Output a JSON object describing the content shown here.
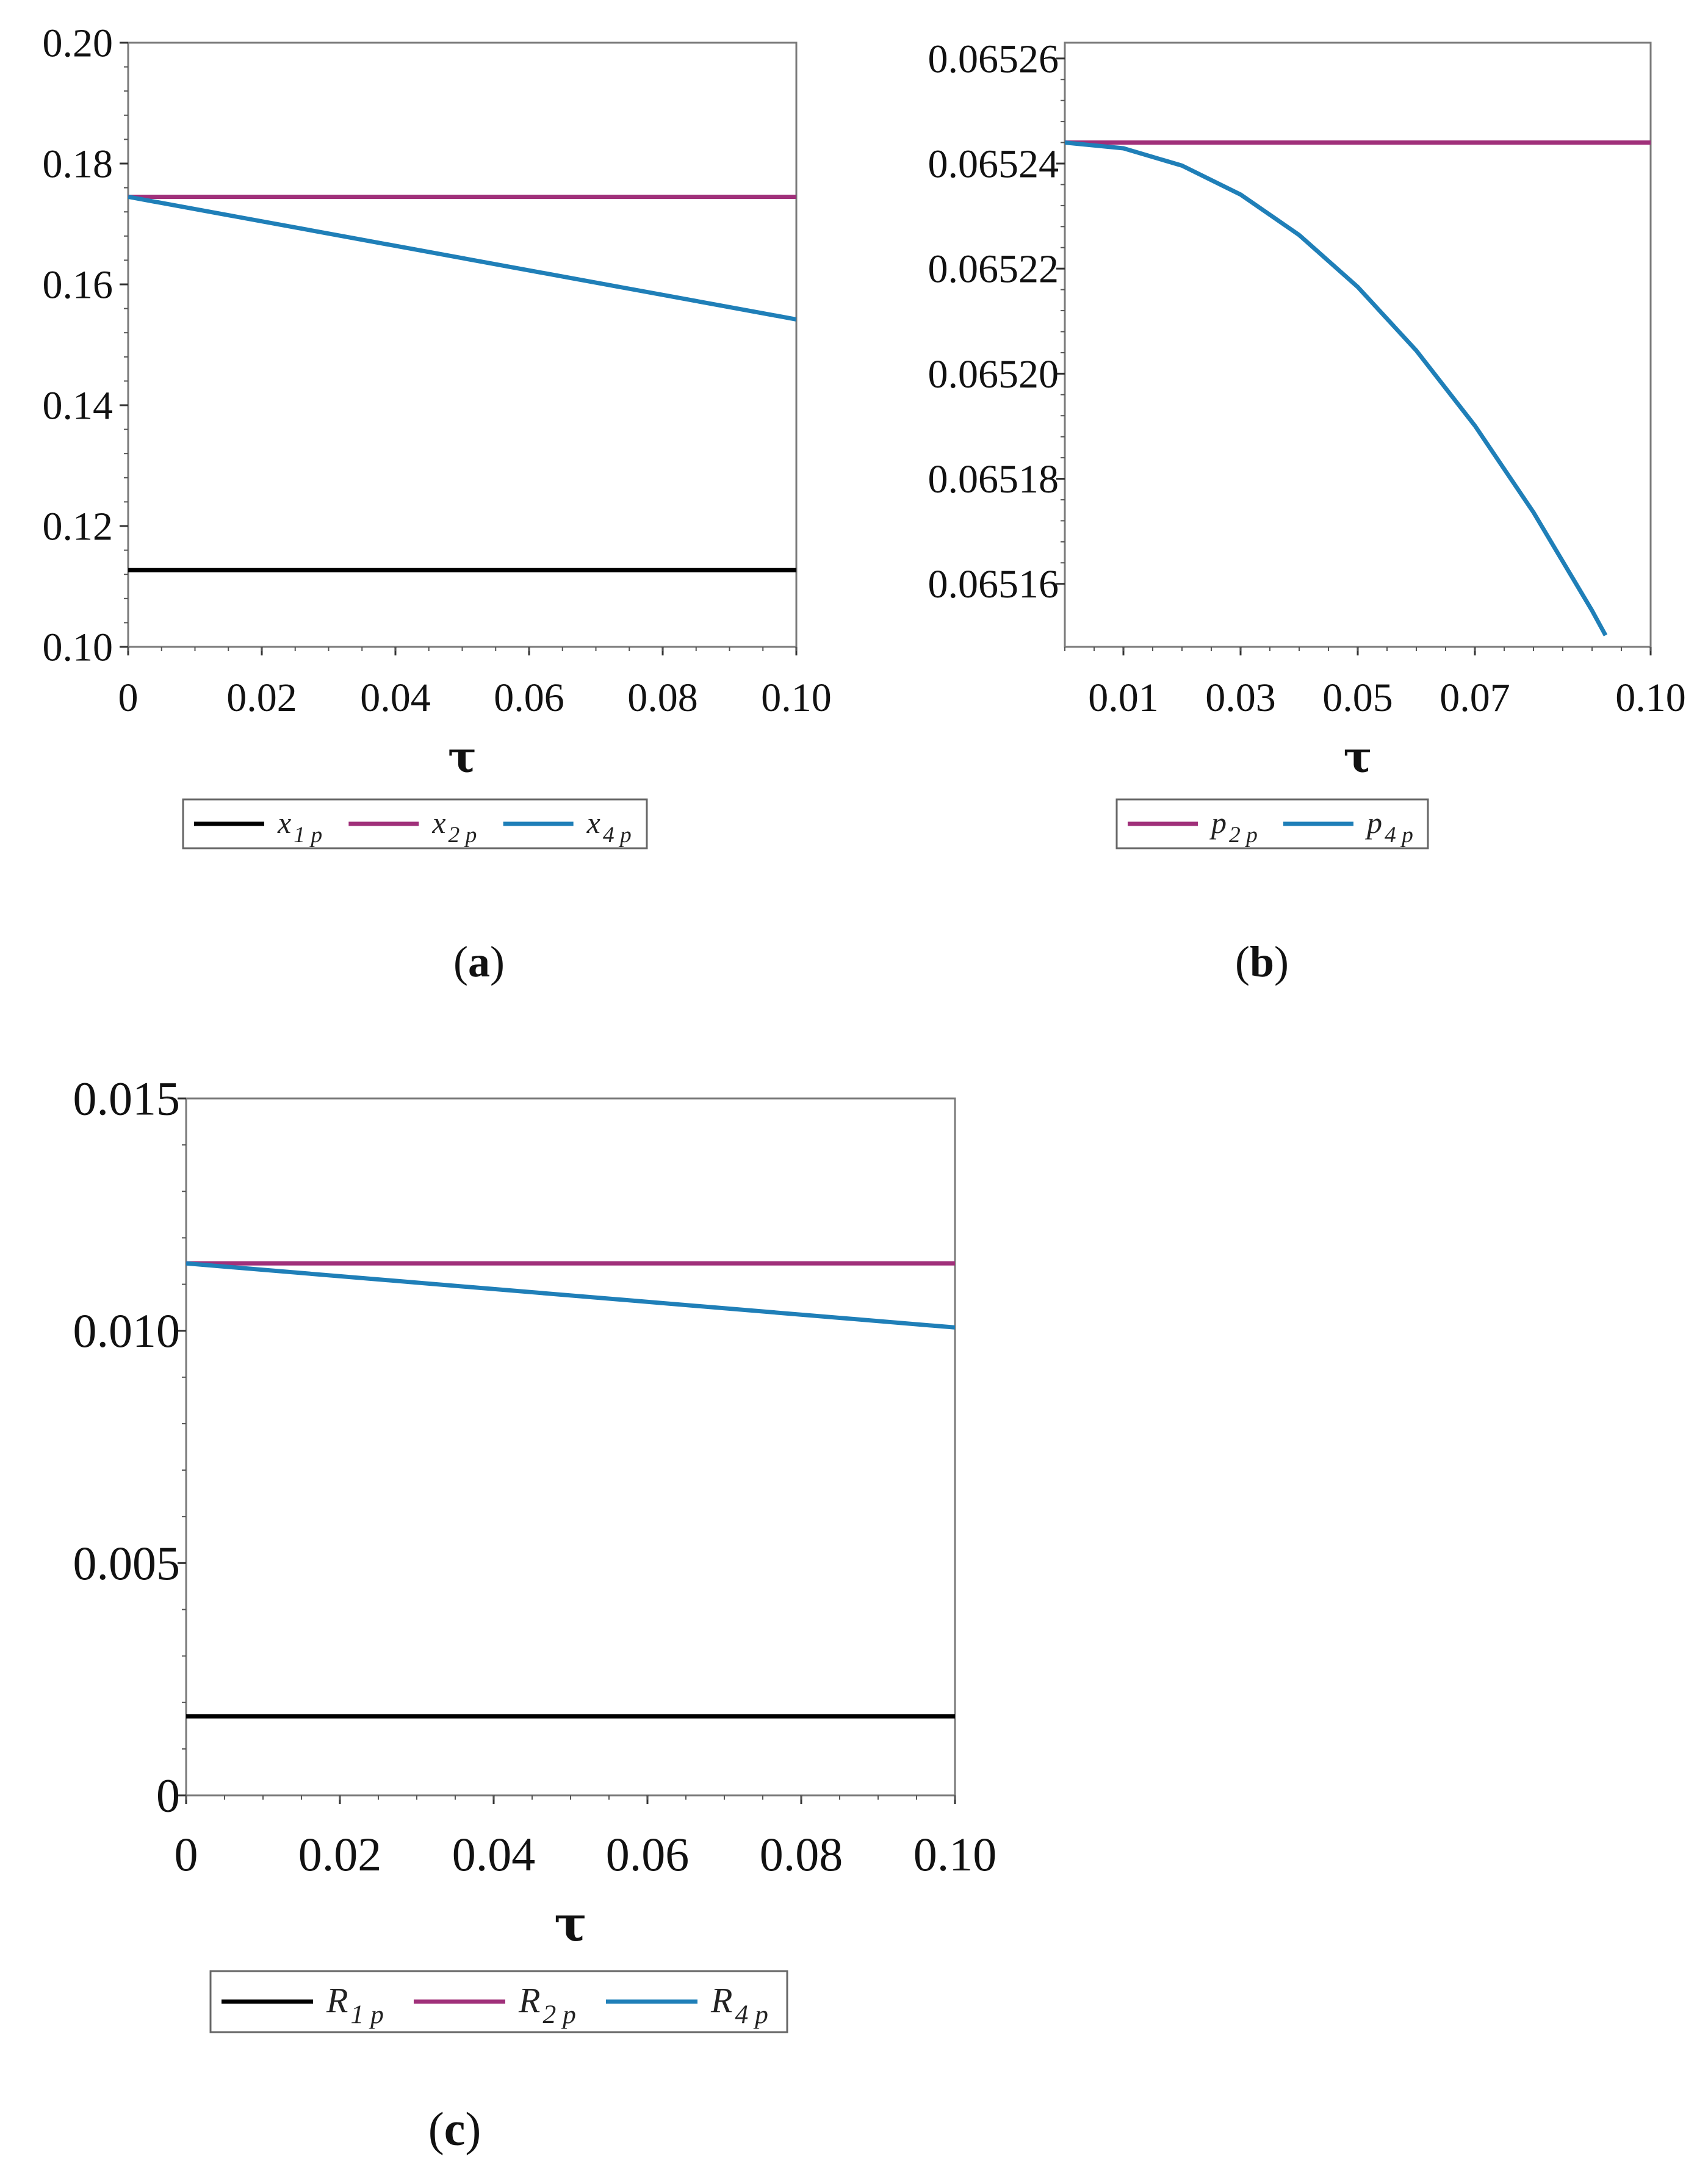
{
  "colors": {
    "black": "#000000",
    "magenta": "#a0307a",
    "blue": "#1f7fb8",
    "frame": "#7a7a7a"
  },
  "chart_data": [
    {
      "id": "a",
      "type": "line",
      "caption": "a",
      "xlabel": "τ",
      "ylabel": "",
      "xlim": [
        0,
        0.1
      ],
      "ylim": [
        0.1,
        0.2
      ],
      "xticks": [
        {
          "v": 0,
          "label": "0"
        },
        {
          "v": 0.02,
          "label": "0.02"
        },
        {
          "v": 0.04,
          "label": "0.04"
        },
        {
          "v": 0.06,
          "label": "0.06"
        },
        {
          "v": 0.08,
          "label": "0.08"
        },
        {
          "v": 0.1,
          "label": "0.10"
        }
      ],
      "yticks": [
        {
          "v": 0.1,
          "label": "0.10"
        },
        {
          "v": 0.12,
          "label": "0.12"
        },
        {
          "v": 0.14,
          "label": "0.14"
        },
        {
          "v": 0.16,
          "label": "0.16"
        },
        {
          "v": 0.18,
          "label": "0.18"
        },
        {
          "v": 0.2,
          "label": "0.20"
        }
      ],
      "legend_position": "bottom",
      "series": [
        {
          "name": "x1p",
          "sym": "x",
          "sub": "1 p",
          "color": "#000000",
          "x": [
            0,
            0.1
          ],
          "y": [
            0.1127,
            0.1127
          ]
        },
        {
          "name": "x2p",
          "sym": "x",
          "sub": "2 p",
          "color": "#a0307a",
          "x": [
            0,
            0.1
          ],
          "y": [
            0.1745,
            0.1745
          ]
        },
        {
          "name": "x4p",
          "sym": "x",
          "sub": "4 p",
          "color": "#1f7fb8",
          "x": [
            0,
            0.1
          ],
          "y": [
            0.1745,
            0.1542
          ]
        }
      ]
    },
    {
      "id": "b",
      "type": "line",
      "caption": "b",
      "xlabel": "τ",
      "ylabel": "",
      "xlim": [
        0,
        0.1
      ],
      "ylim": [
        0.065148,
        0.065263
      ],
      "xticks": [
        {
          "v": 0.01,
          "label": "0.01"
        },
        {
          "v": 0.03,
          "label": "0.03"
        },
        {
          "v": 0.05,
          "label": "0.05"
        },
        {
          "v": 0.07,
          "label": "0.07"
        },
        {
          "v": 0.1,
          "label": "0.10"
        }
      ],
      "yticks": [
        {
          "v": 0.06516,
          "label": "0.06516"
        },
        {
          "v": 0.06518,
          "label": "0.06518"
        },
        {
          "v": 0.0652,
          "label": "0.06520"
        },
        {
          "v": 0.06522,
          "label": "0.06522"
        },
        {
          "v": 0.06524,
          "label": "0.06524"
        },
        {
          "v": 0.06526,
          "label": "0.06526"
        }
      ],
      "legend_position": "bottom",
      "series": [
        {
          "name": "p2p",
          "sym": "p",
          "sub": "2 p",
          "color": "#a0307a",
          "x": [
            0,
            0.1
          ],
          "y": [
            0.065244,
            0.065244
          ]
        },
        {
          "name": "p4p",
          "sym": "p",
          "sub": "4 p",
          "color": "#1f7fb8",
          "x": [
            0,
            0.01,
            0.02,
            0.03,
            0.04,
            0.05,
            0.06,
            0.07,
            0.08,
            0.09,
            0.0923
          ],
          "y": [
            0.065244,
            0.0652429,
            0.0652396,
            0.0652341,
            0.0652264,
            0.0652165,
            0.0652044,
            0.0651901,
            0.0651736,
            0.0651549,
            0.0651502
          ]
        }
      ]
    },
    {
      "id": "c",
      "type": "line",
      "caption": "c",
      "xlabel": "τ",
      "ylabel": "",
      "xlim": [
        0,
        0.1
      ],
      "ylim": [
        0,
        0.015
      ],
      "xticks": [
        {
          "v": 0,
          "label": "0"
        },
        {
          "v": 0.02,
          "label": "0.02"
        },
        {
          "v": 0.04,
          "label": "0.04"
        },
        {
          "v": 0.06,
          "label": "0.06"
        },
        {
          "v": 0.08,
          "label": "0.08"
        },
        {
          "v": 0.1,
          "label": "0.10"
        }
      ],
      "yticks": [
        {
          "v": 0,
          "label": "0"
        },
        {
          "v": 0.005,
          "label": "0.005"
        },
        {
          "v": 0.01,
          "label": "0.010"
        },
        {
          "v": 0.015,
          "label": "0.015"
        }
      ],
      "legend_position": "bottom",
      "series": [
        {
          "name": "R1p",
          "sym": "R",
          "sub": "1 p",
          "color": "#000000",
          "x": [
            0,
            0.1
          ],
          "y": [
            0.0017,
            0.0017
          ]
        },
        {
          "name": "R2p",
          "sym": "R",
          "sub": "2 p",
          "color": "#a0307a",
          "x": [
            0,
            0.1
          ],
          "y": [
            0.01145,
            0.01145
          ]
        },
        {
          "name": "R4p",
          "sym": "R",
          "sub": "4 p",
          "color": "#1f7fb8",
          "x": [
            0,
            0.1
          ],
          "y": [
            0.01145,
            0.01007
          ]
        }
      ]
    }
  ]
}
